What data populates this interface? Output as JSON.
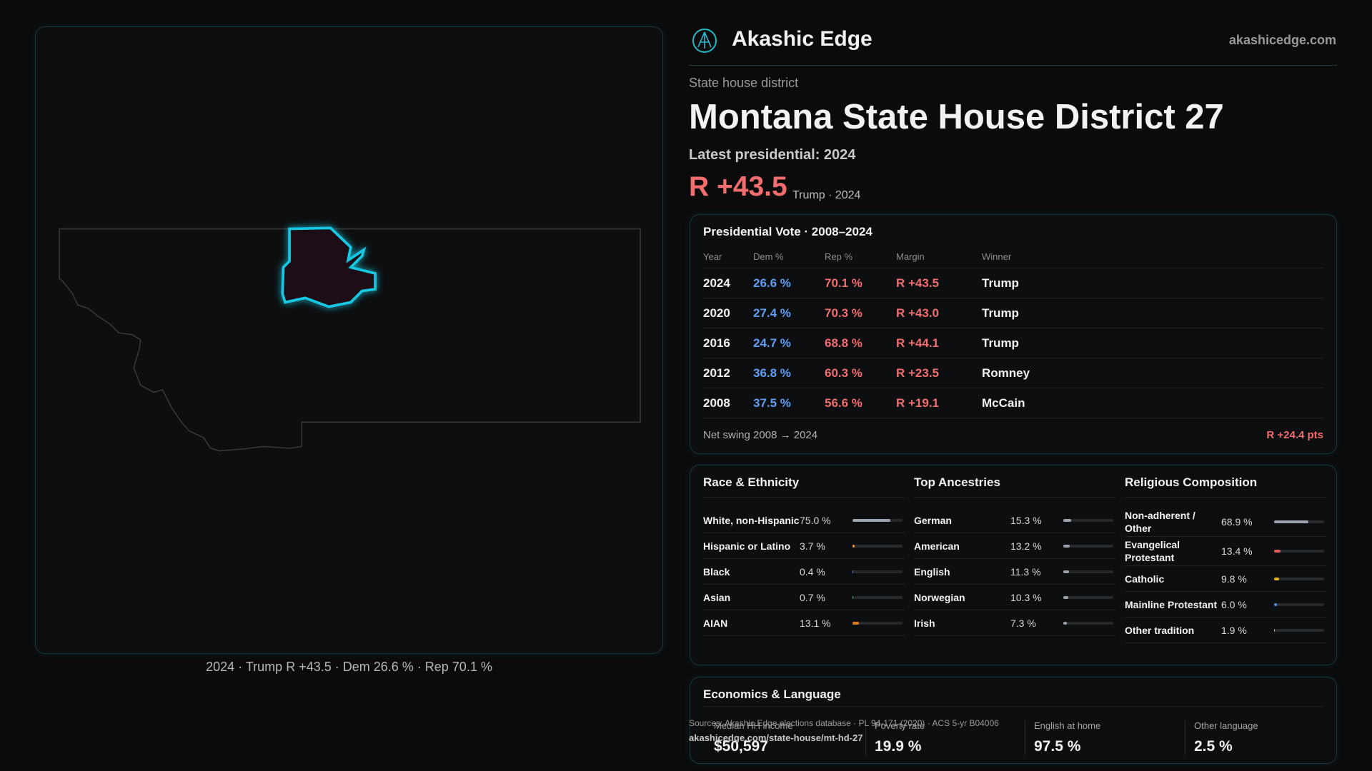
{
  "header": {
    "brand": "Akashic Edge",
    "site": "akashicedge.com"
  },
  "district": {
    "kind": "State house district",
    "title": "Montana State House District 27",
    "latest": "Latest presidential: 2024",
    "margin": "R +43.5",
    "winner_note": "Trump · 2024"
  },
  "map": {
    "caption": "2024 · Trump R +43.5 · Dem 26.6 % · Rep 70.1 %"
  },
  "presidential": {
    "title": "Presidential Vote · 2008–2024",
    "columns": [
      "Year",
      "Dem %",
      "Rep %",
      "Margin",
      "Winner"
    ],
    "rows": [
      [
        "2024",
        "26.6 %",
        "70.1 %",
        "R +43.5",
        "Trump"
      ],
      [
        "2020",
        "27.4 %",
        "70.3 %",
        "R +43.0",
        "Trump"
      ],
      [
        "2016",
        "24.7 %",
        "68.8 %",
        "R +44.1",
        "Trump"
      ],
      [
        "2012",
        "36.8 %",
        "60.3 %",
        "R +23.5",
        "Romney"
      ],
      [
        "2008",
        "37.5 %",
        "56.6 %",
        "R +19.1",
        "McCain"
      ]
    ],
    "swing_label": "Net swing 2008 → 2024",
    "swing_value": "R +24.4 pts"
  },
  "race": {
    "title": "Race & Ethnicity",
    "items": [
      {
        "label": "White, non-Hispanic",
        "value": 75.0,
        "value_label": "75.0 %",
        "color": "#9aa3ad"
      },
      {
        "label": "Hispanic or Latino",
        "value": 3.7,
        "value_label": "3.7 %",
        "color": "#e0902a"
      },
      {
        "label": "Black",
        "value": 0.4,
        "value_label": "0.4 %",
        "color": "#5f7fd8"
      },
      {
        "label": "Asian",
        "value": 0.7,
        "value_label": "0.7 %",
        "color": "#2fb59a"
      },
      {
        "label": "AIAN",
        "value": 13.1,
        "value_label": "13.1 %",
        "color": "#e07a1e"
      }
    ]
  },
  "ancestry": {
    "title": "Top Ancestries",
    "items": [
      {
        "label": "German",
        "value": 15.3,
        "value_label": "15.3 %",
        "color": "#9aa3ad"
      },
      {
        "label": "American",
        "value": 13.2,
        "value_label": "13.2 %",
        "color": "#9aa3ad"
      },
      {
        "label": "English",
        "value": 11.3,
        "value_label": "11.3 %",
        "color": "#9aa3ad"
      },
      {
        "label": "Norwegian",
        "value": 10.3,
        "value_label": "10.3 %",
        "color": "#9aa3ad"
      },
      {
        "label": "Irish",
        "value": 7.3,
        "value_label": "7.3 %",
        "color": "#9aa3ad"
      }
    ]
  },
  "religion": {
    "title": "Religious Composition",
    "items": [
      {
        "label": "Non-adherent / Other",
        "value": 68.9,
        "value_label": "68.9 %",
        "color": "#9aa3ad"
      },
      {
        "label": "Evangelical Protestant",
        "value": 13.4,
        "value_label": "13.4 %",
        "color": "#e05a5a"
      },
      {
        "label": "Catholic",
        "value": 9.8,
        "value_label": "9.8 %",
        "color": "#e0b52a"
      },
      {
        "label": "Mainline Protestant",
        "value": 6.0,
        "value_label": "6.0 %",
        "color": "#4f8fe0"
      },
      {
        "label": "Other tradition",
        "value": 1.9,
        "value_label": "1.9 %",
        "color": "#9aa3ad"
      }
    ]
  },
  "economics": {
    "title": "Economics & Language",
    "metrics": [
      {
        "label": "Median HH income",
        "value": "$50,597"
      },
      {
        "label": "Poverty rate",
        "value": "19.9 %"
      },
      {
        "label": "English at home",
        "value": "97.5 %"
      },
      {
        "label": "Other language",
        "value": "2.5 %"
      }
    ]
  },
  "footer": {
    "sources": "Sources: Akashic Edge elections database · PL 94-171 (2020) · ACS 5-yr B04006",
    "url": "akashicedge.com/state-house/mt-hd-27"
  }
}
